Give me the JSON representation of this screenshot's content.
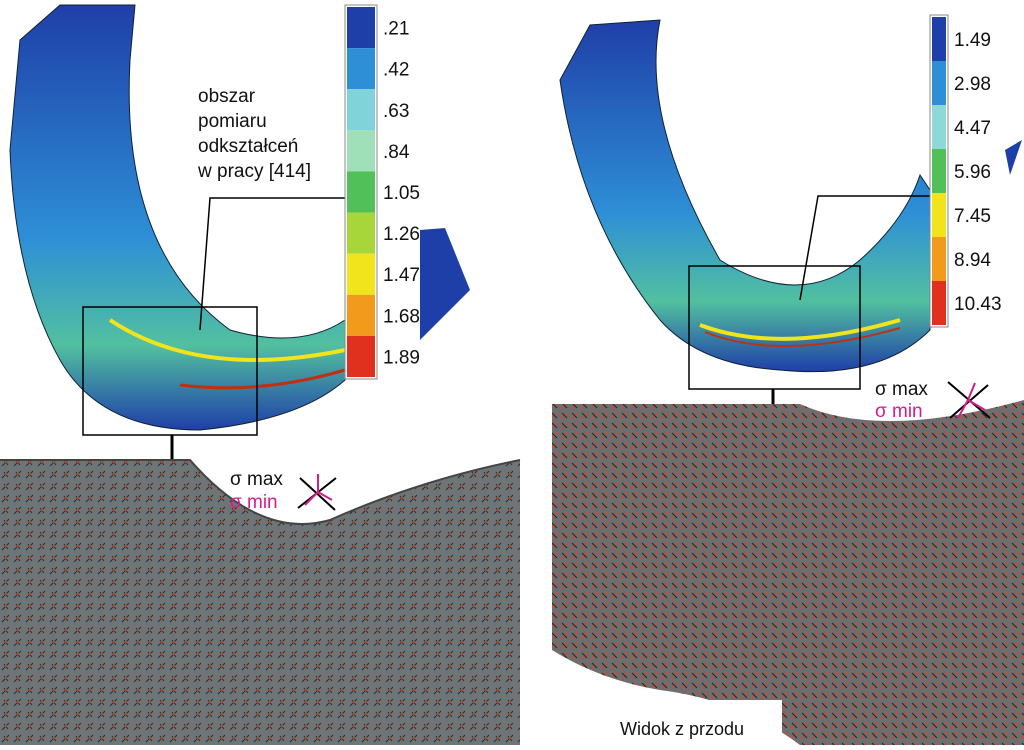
{
  "left_legend": {
    "labels": [
      ".21",
      ".42",
      ".63",
      ".84",
      "1.05",
      "1.26",
      "1.47",
      "1.68",
      "1.89"
    ],
    "colors": [
      "#1f3fa8",
      "#2e8fd6",
      "#7fd3d9",
      "#9fe0b8",
      "#52c058",
      "#a6d63a",
      "#f2e41c",
      "#f29a1c",
      "#e0301e"
    ]
  },
  "right_legend": {
    "labels": [
      "1.49",
      "2.98",
      "4.47",
      "5.96",
      "7.45",
      "8.94",
      "10.43"
    ],
    "colors": [
      "#1f3fa8",
      "#2e8fd6",
      "#8fd8d8",
      "#52c058",
      "#f2e41c",
      "#f29a1c",
      "#e0301e"
    ]
  },
  "annotation": {
    "lines": [
      "obszar",
      "pomiaru",
      "odkształceń",
      "w pracy [414]"
    ]
  },
  "left_stress": {
    "max": "σ max",
    "min": "σ min"
  },
  "right_stress": {
    "max": "σ max",
    "min": "σ min"
  },
  "caption": "Widok z przodu"
}
